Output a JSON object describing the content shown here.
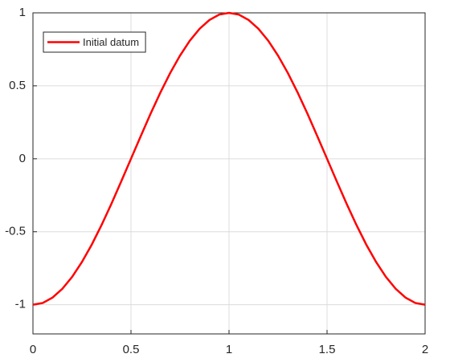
{
  "chart_data": {
    "type": "line",
    "x": [
      0,
      0.05,
      0.1,
      0.15,
      0.2,
      0.25,
      0.3,
      0.35,
      0.4,
      0.45,
      0.5,
      0.55,
      0.6,
      0.65,
      0.7,
      0.75,
      0.8,
      0.85,
      0.9,
      0.95,
      1,
      1.05,
      1.1,
      1.15,
      1.2,
      1.25,
      1.3,
      1.35,
      1.4,
      1.45,
      1.5,
      1.55,
      1.6,
      1.65,
      1.7,
      1.75,
      1.8,
      1.85,
      1.9,
      1.95,
      2
    ],
    "series": [
      {
        "name": "Initial datum",
        "color": "#ff0000",
        "values": [
          -1,
          -0.988,
          -0.951,
          -0.891,
          -0.809,
          -0.707,
          -0.588,
          -0.454,
          -0.309,
          -0.156,
          0,
          0.156,
          0.309,
          0.454,
          0.588,
          0.707,
          0.809,
          0.891,
          0.951,
          0.988,
          1,
          0.988,
          0.951,
          0.891,
          0.809,
          0.707,
          0.588,
          0.454,
          0.309,
          0.156,
          0,
          -0.156,
          -0.309,
          -0.454,
          -0.588,
          -0.707,
          -0.809,
          -0.891,
          -0.951,
          -0.988,
          -1
        ]
      }
    ],
    "xlim": [
      0,
      2
    ],
    "xticks": [
      0,
      0.5,
      1,
      1.5,
      2
    ],
    "ylim": [
      -1.2,
      1
    ],
    "yticks": [
      -1,
      -0.5,
      0,
      0.5,
      1
    ],
    "grid": true,
    "legend": "northwest"
  }
}
